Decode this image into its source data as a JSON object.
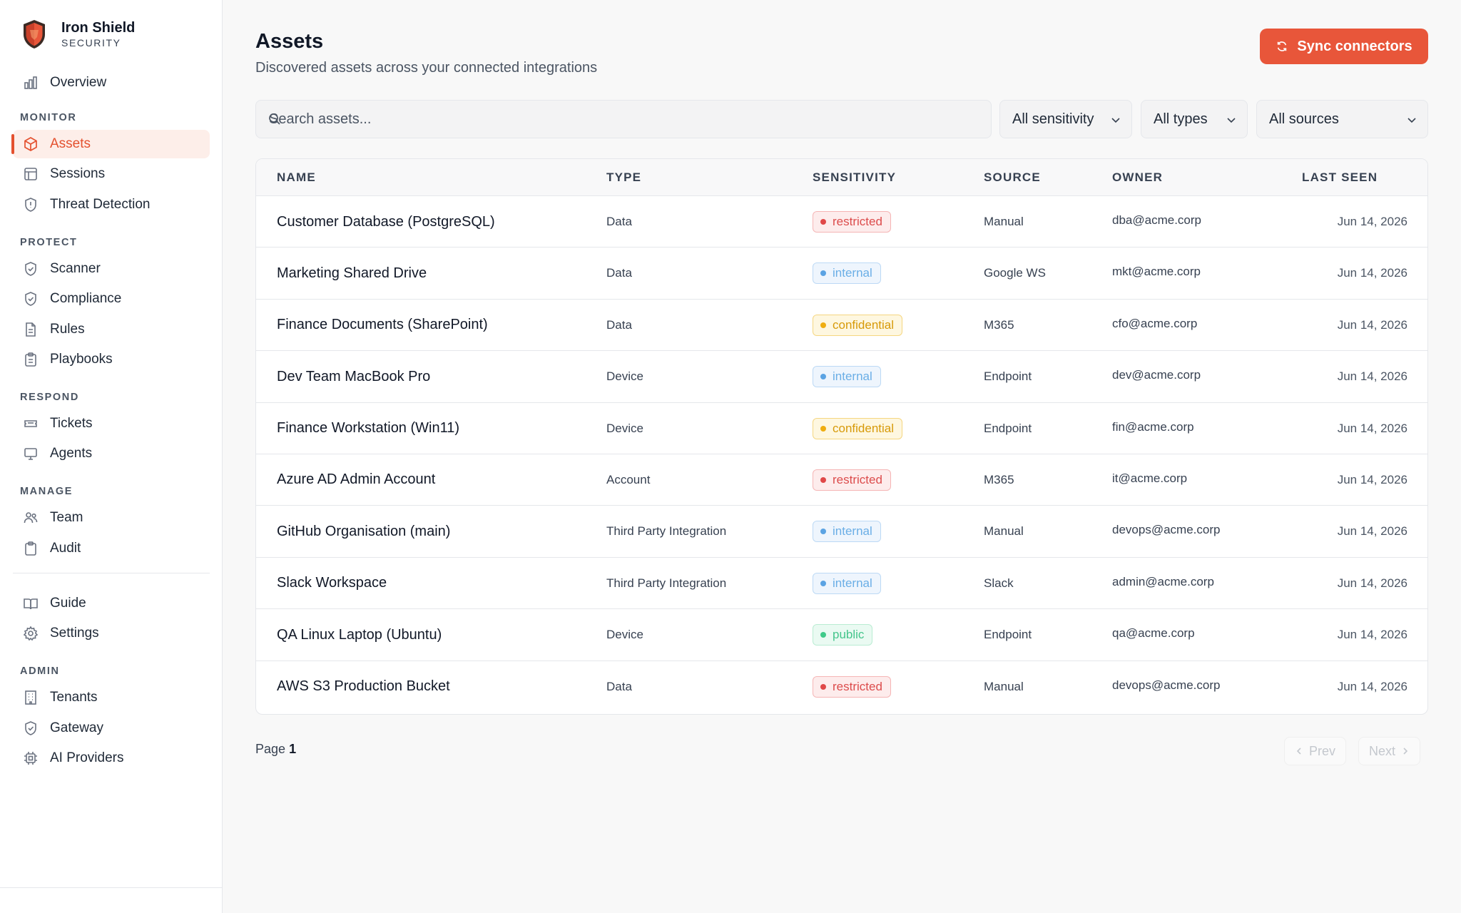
{
  "brand": {
    "name": "Iron Shield",
    "sub": "SECURITY"
  },
  "colors": {
    "accent": "#e8563a",
    "restricted": "#e04848",
    "internal": "#5ba3e3",
    "confidential": "#efad10",
    "public": "#3fca89"
  },
  "sidebar": {
    "overview": {
      "label": "Overview",
      "icon": "bar-chart-icon"
    },
    "sections": [
      {
        "title": "MONITOR",
        "items": [
          {
            "label": "Assets",
            "icon": "cube-icon",
            "active": true
          },
          {
            "label": "Sessions",
            "icon": "table-icon"
          },
          {
            "label": "Threat Detection",
            "icon": "shield-alert-icon"
          }
        ]
      },
      {
        "title": "PROTECT",
        "items": [
          {
            "label": "Scanner",
            "icon": "shield-check-icon"
          },
          {
            "label": "Compliance",
            "icon": "shield-check-icon"
          },
          {
            "label": "Rules",
            "icon": "file-text-icon"
          },
          {
            "label": "Playbooks",
            "icon": "clipboard-list-icon"
          }
        ]
      },
      {
        "title": "RESPOND",
        "items": [
          {
            "label": "Tickets",
            "icon": "ticket-icon"
          },
          {
            "label": "Agents",
            "icon": "monitor-icon"
          }
        ]
      },
      {
        "title": "MANAGE",
        "items": [
          {
            "label": "Team",
            "icon": "users-icon"
          },
          {
            "label": "Audit",
            "icon": "clipboard-icon"
          }
        ]
      }
    ],
    "utility": [
      {
        "label": "Guide",
        "icon": "book-icon"
      },
      {
        "label": "Settings",
        "icon": "gear-icon"
      }
    ],
    "admin": {
      "title": "ADMIN",
      "items": [
        {
          "label": "Tenants",
          "icon": "building-icon"
        },
        {
          "label": "Gateway",
          "icon": "shield-check-icon"
        },
        {
          "label": "AI Providers",
          "icon": "cpu-icon"
        }
      ]
    }
  },
  "header": {
    "title": "Assets",
    "subtitle": "Discovered assets across your connected integrations",
    "sync_label": "Sync connectors"
  },
  "filters": {
    "search_placeholder": "Search assets...",
    "sensitivity": "All sensitivity",
    "types": "All types",
    "sources": "All sources"
  },
  "table": {
    "columns": [
      "NAME",
      "TYPE",
      "SENSITIVITY",
      "SOURCE",
      "OWNER",
      "LAST SEEN"
    ],
    "rows": [
      {
        "name": "Customer Database (PostgreSQL)",
        "type": "Data",
        "sensitivity": "restricted",
        "source": "Manual",
        "owner": "dba@acme.corp",
        "last_seen": "Jun 14, 2026"
      },
      {
        "name": "Marketing Shared Drive",
        "type": "Data",
        "sensitivity": "internal",
        "source": "Google WS",
        "owner": "mkt@acme.corp",
        "last_seen": "Jun 14, 2026"
      },
      {
        "name": "Finance Documents (SharePoint)",
        "type": "Data",
        "sensitivity": "confidential",
        "source": "M365",
        "owner": "cfo@acme.corp",
        "last_seen": "Jun 14, 2026"
      },
      {
        "name": "Dev Team MacBook Pro",
        "type": "Device",
        "sensitivity": "internal",
        "source": "Endpoint",
        "owner": "dev@acme.corp",
        "last_seen": "Jun 14, 2026"
      },
      {
        "name": "Finance Workstation (Win11)",
        "type": "Device",
        "sensitivity": "confidential",
        "source": "Endpoint",
        "owner": "fin@acme.corp",
        "last_seen": "Jun 14, 2026"
      },
      {
        "name": "Azure AD Admin Account",
        "type": "Account",
        "sensitivity": "restricted",
        "source": "M365",
        "owner": "it@acme.corp",
        "last_seen": "Jun 14, 2026"
      },
      {
        "name": "GitHub Organisation (main)",
        "type": "Third Party Integration",
        "sensitivity": "internal",
        "source": "Manual",
        "owner": "devops@acme.corp",
        "last_seen": "Jun 14, 2026"
      },
      {
        "name": "Slack Workspace",
        "type": "Third Party Integration",
        "sensitivity": "internal",
        "source": "Slack",
        "owner": "admin@acme.corp",
        "last_seen": "Jun 14, 2026"
      },
      {
        "name": "QA Linux Laptop (Ubuntu)",
        "type": "Device",
        "sensitivity": "public",
        "source": "Endpoint",
        "owner": "qa@acme.corp",
        "last_seen": "Jun 14, 2026"
      },
      {
        "name": "AWS S3 Production Bucket",
        "type": "Data",
        "sensitivity": "restricted",
        "source": "Manual",
        "owner": "devops@acme.corp",
        "last_seen": "Jun 14, 2026"
      }
    ]
  },
  "pagination": {
    "page_label": "Page",
    "page_number": "1",
    "prev_label": "Prev",
    "next_label": "Next"
  }
}
